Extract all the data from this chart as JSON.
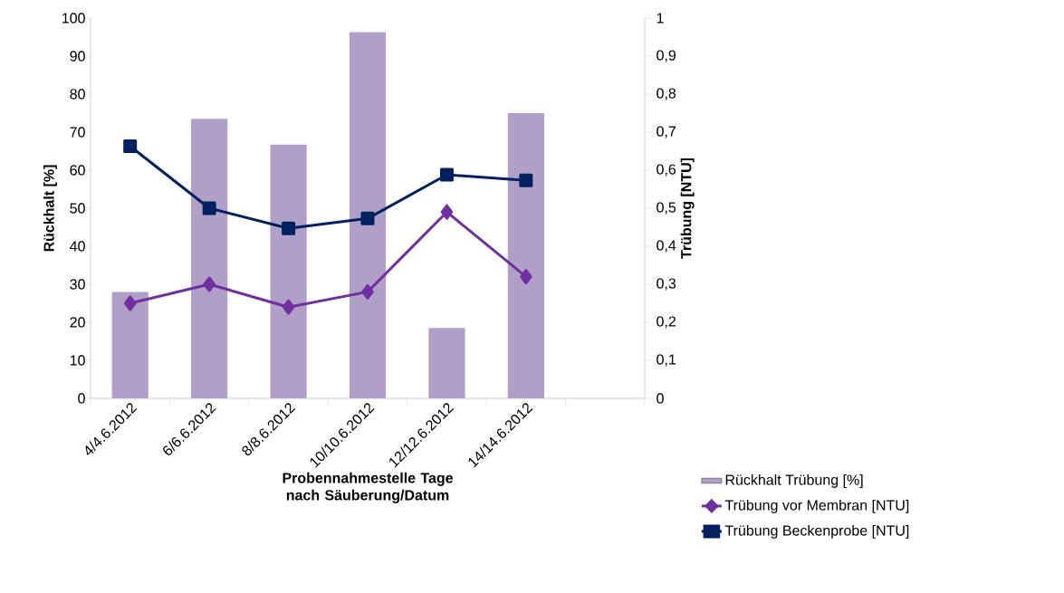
{
  "chart_data": {
    "type": "bar",
    "xlabel": "Probennahmestelle Tage nach Säuberung/Datum",
    "ylabel": "Rückhalt [%]",
    "y2label": "Trübung [NTU]",
    "categories": [
      "4/4.6.2012",
      "6/6.6.2012",
      "8/8.6.2012",
      "10/10.6.2012",
      "12/12.6.2012",
      "14/14.6.2012",
      null
    ],
    "ylim": [
      0,
      100
    ],
    "yticks": [
      0,
      10,
      20,
      30,
      40,
      50,
      60,
      70,
      80,
      90,
      100
    ],
    "y2lim": [
      0,
      1
    ],
    "y2ticks": [
      {
        "value": 0,
        "label": "0"
      },
      {
        "value": 0.1,
        "label": "0,1"
      },
      {
        "value": 0.2,
        "label": "0,2"
      },
      {
        "value": 0.3,
        "label": "0,3"
      },
      {
        "value": 0.4,
        "label": "0,4"
      },
      {
        "value": 0.5,
        "label": "0,5"
      },
      {
        "value": 0.6,
        "label": "0,6"
      },
      {
        "value": 0.7,
        "label": "0,7"
      },
      {
        "value": 0.8,
        "label": "0,8"
      },
      {
        "value": 0.9,
        "label": "0,9"
      },
      {
        "value": 1,
        "label": "1"
      }
    ],
    "grid": false,
    "legend": "bottom right",
    "series": [
      {
        "name": "Rückhalt Trübung [%]",
        "color": "#b0a0c8",
        "values": [
          28,
          73.5,
          66.7,
          96.3,
          18.5,
          75,
          null
        ]
      },
      {
        "name": "Trübung vor Membran [NTU]",
        "type": "line",
        "axis": "y2",
        "marker": "diamond",
        "color": "#7030a0",
        "values": [
          0.25,
          0.3,
          0.24,
          0.28,
          0.49,
          0.32,
          null
        ]
      },
      {
        "name": "Trübung Beckenprobe [NTU]",
        "type": "line",
        "axis": "y2",
        "marker": "square",
        "color": "#002060",
        "values": [
          0.663,
          0.5,
          0.447,
          0.473,
          0.588,
          0.573,
          null
        ]
      }
    ]
  }
}
